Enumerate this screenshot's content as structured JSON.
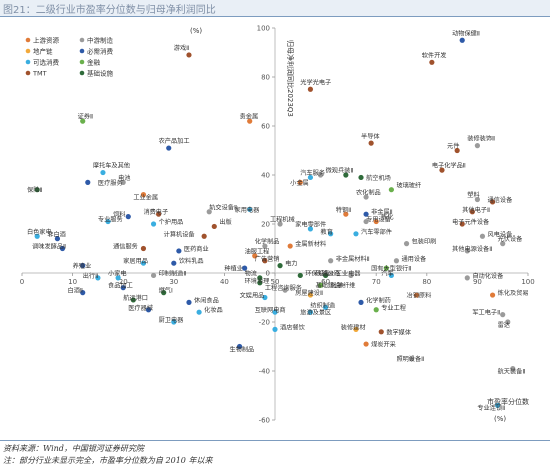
{
  "figure_title": "图21：二级行业市盈率分位数与归母净利润同比",
  "chart_data": {
    "type": "scatter",
    "x_unit_label": "(%)",
    "x_axis_label": "市盈率分位数",
    "y_unit_label": "(%)",
    "y_axis_label": "归母净利润同比2023Q3",
    "xlim": [
      0,
      100
    ],
    "ylim": [
      -60,
      100
    ],
    "x_ticks": [
      0,
      10,
      20,
      30,
      40,
      50,
      60,
      70,
      80,
      90,
      100
    ],
    "y_ticks": [
      -60,
      -40,
      -20,
      0,
      20,
      40,
      60,
      80,
      100
    ],
    "legend_placement": "top-left",
    "legend": [
      {
        "name": "上游资源",
        "color": "#e07b39"
      },
      {
        "name": "中游制造",
        "color": "#9b9b9b"
      },
      {
        "name": "地产链",
        "color": "#f2a93b"
      },
      {
        "name": "必需消费",
        "color": "#2e5aa8"
      },
      {
        "name": "可选消费",
        "color": "#3aaee0"
      },
      {
        "name": "金融",
        "color": "#6ab04c"
      },
      {
        "name": "TMT",
        "color": "#a0522d"
      },
      {
        "name": "基础设施",
        "color": "#2f6b3a"
      }
    ],
    "points": [
      {
        "label": "游戏Ⅱ",
        "x": 33,
        "y": 89,
        "color": "#a0522d"
      },
      {
        "label": "动物保健Ⅱ",
        "x": 87,
        "y": 95,
        "color": "#2e5aa8"
      },
      {
        "label": "软件开发",
        "x": 81,
        "y": 86,
        "color": "#a0522d"
      },
      {
        "label": "光学光电子",
        "x": 57,
        "y": 75,
        "color": "#a0522d"
      },
      {
        "label": "贵金属",
        "x": 45,
        "y": 62,
        "color": "#e07b39"
      },
      {
        "label": "证券Ⅱ",
        "x": 12,
        "y": 62,
        "color": "#6ab04c"
      },
      {
        "label": "农产品加工",
        "x": 29,
        "y": 51,
        "color": "#2e5aa8"
      },
      {
        "label": "半导体",
        "x": 69,
        "y": 53,
        "color": "#a0522d"
      },
      {
        "label": "装修装饰Ⅱ",
        "x": 90,
        "y": 52,
        "color": "#9b9b9b"
      },
      {
        "label": "元件",
        "x": 86,
        "y": 50,
        "color": "#a0522d"
      },
      {
        "label": "摩托车及其他",
        "x": 16,
        "y": 41,
        "color": "#3aaee0"
      },
      {
        "label": "医疗服务",
        "x": 13,
        "y": 37,
        "color": "#2e5aa8"
      },
      {
        "label": "电池",
        "x": 20,
        "y": 37,
        "color": "#9b9b9b"
      },
      {
        "label": "航空机场",
        "x": 67,
        "y": 39,
        "color": "#2f6b3a"
      },
      {
        "label": "电子化学品Ⅱ",
        "x": 83,
        "y": 42,
        "color": "#a0522d"
      },
      {
        "label": "汽车服务",
        "x": 57,
        "y": 39,
        "color": "#3aaee0"
      },
      {
        "label": "小金属",
        "x": 55,
        "y": 37,
        "color": "#e07b39"
      },
      {
        "label": "燃气Ⅱ",
        "x": 64,
        "y": 40,
        "color": "#2f6b3a"
      },
      {
        "label": "微观兵装Ⅱ",
        "x": 59,
        "y": 40,
        "color": "#9b9b9b"
      },
      {
        "label": "保险Ⅱ",
        "x": 3,
        "y": 34,
        "color": "#2f6b3a"
      },
      {
        "label": "工业金属",
        "x": 24,
        "y": 32,
        "color": "#e07b39"
      },
      {
        "label": "玻璃玻纤",
        "x": 73,
        "y": 34,
        "color": "#6ab04c"
      },
      {
        "label": "农化制品",
        "x": 68,
        "y": 31,
        "color": "#9b9b9b"
      },
      {
        "label": "塑料",
        "x": 90,
        "y": 30,
        "color": "#9b9b9b"
      },
      {
        "label": "通信设备",
        "x": 93,
        "y": 29,
        "color": "#a0522d"
      },
      {
        "label": "家用电器",
        "x": 45,
        "y": 26,
        "color": "#3aaee0"
      },
      {
        "label": "消费电子",
        "x": 27,
        "y": 24,
        "color": "#a0522d"
      },
      {
        "label": "轨交设备Ⅱ",
        "x": 37,
        "y": 25,
        "color": "#9b9b9b"
      },
      {
        "label": "特钢Ⅱ",
        "x": 64,
        "y": 24,
        "color": "#e07b39"
      },
      {
        "label": "非金属Ⅱ",
        "x": 68,
        "y": 24,
        "color": "#2e5aa8"
      },
      {
        "label": "其他电子Ⅱ",
        "x": 89,
        "y": 25,
        "color": "#a0522d"
      },
      {
        "label": "饲料",
        "x": 21,
        "y": 23,
        "color": "#2e5aa8"
      },
      {
        "label": "专业服务",
        "x": 17,
        "y": 21,
        "color": "#3aaee0"
      },
      {
        "label": "个护用品",
        "x": 26,
        "y": 20,
        "color": "#3aaee0"
      },
      {
        "label": "工程机械",
        "x": 51,
        "y": 20,
        "color": "#9b9b9b"
      },
      {
        "label": "炼化",
        "x": 70,
        "y": 21,
        "color": "#e07b39"
      },
      {
        "label": "专用设备",
        "x": 68,
        "y": 21,
        "color": "#9b9b9b"
      },
      {
        "label": "电子元件设备",
        "x": 87,
        "y": 20,
        "color": "#a0522d"
      },
      {
        "label": "出版",
        "x": 38,
        "y": 19,
        "color": "#a0522d"
      },
      {
        "label": "家电零部件",
        "x": 57,
        "y": 18,
        "color": "#3aaee0"
      },
      {
        "label": "风电设备",
        "x": 91,
        "y": 15,
        "color": "#9b9b9b"
      },
      {
        "label": "计算机设备",
        "x": 36,
        "y": 15,
        "color": "#a0522d"
      },
      {
        "label": "教育",
        "x": 61,
        "y": 16,
        "color": "#3aaee0"
      },
      {
        "label": "汽车零部件",
        "x": 66,
        "y": 16,
        "color": "#3aaee0"
      },
      {
        "label": "白色家电",
        "x": 3,
        "y": 15,
        "color": "#3aaee0"
      },
      {
        "label": "非白酒",
        "x": 7,
        "y": 14,
        "color": "#2e5aa8"
      },
      {
        "label": "化学制品",
        "x": 48,
        "y": 11,
        "color": "#9b9b9b"
      },
      {
        "label": "金属新材料",
        "x": 53,
        "y": 11,
        "color": "#e07b39"
      },
      {
        "label": "包装印刷",
        "x": 76,
        "y": 12,
        "color": "#9b9b9b"
      },
      {
        "label": "光伏设备",
        "x": 95,
        "y": 12,
        "color": "#9b9b9b"
      },
      {
        "label": "调味发酵品Ⅱ",
        "x": 8,
        "y": 10,
        "color": "#2e5aa8"
      },
      {
        "label": "通信服务",
        "x": 24,
        "y": 10,
        "color": "#a0522d"
      },
      {
        "label": "医药商业",
        "x": 31,
        "y": 9,
        "color": "#2e5aa8"
      },
      {
        "label": "其他电源设备Ⅱ",
        "x": 88,
        "y": 9,
        "color": "#9b9b9b"
      },
      {
        "label": "油服工程",
        "x": 46,
        "y": 7,
        "color": "#e07b39"
      },
      {
        "label": "广告营销",
        "x": 48,
        "y": 5,
        "color": "#a0522d"
      },
      {
        "label": "电力",
        "x": 51,
        "y": 3,
        "color": "#2f6b3a"
      },
      {
        "label": "非金属材料Ⅱ",
        "x": 61,
        "y": 5,
        "color": "#9b9b9b"
      },
      {
        "label": "通用设备",
        "x": 74,
        "y": 5,
        "color": "#9b9b9b"
      },
      {
        "label": "国有大型银行Ⅱ",
        "x": 72,
        "y": 2,
        "color": "#6ab04c"
      },
      {
        "label": "养殖业",
        "x": 12,
        "y": 3,
        "color": "#2e5aa8"
      },
      {
        "label": "家居用品",
        "x": 24,
        "y": 4,
        "color": "#3aaee0"
      },
      {
        "label": "饮料乳品",
        "x": 30,
        "y": 4,
        "color": "#2e5aa8"
      },
      {
        "label": "种植业",
        "x": 44,
        "y": 2,
        "color": "#2e5aa8"
      },
      {
        "label": "出行Ⅱ",
        "x": 15,
        "y": -2,
        "color": "#3aaee0"
      },
      {
        "label": "小家电",
        "x": 19,
        "y": -2,
        "color": "#3aaee0"
      },
      {
        "label": "食品加工",
        "x": 20,
        "y": -6,
        "color": "#2e5aa8"
      },
      {
        "label": "印制制造Ⅱ",
        "x": 26,
        "y": -1,
        "color": "#9b9b9b"
      },
      {
        "label": "物流",
        "x": 47,
        "y": -2,
        "color": "#2f6b3a"
      },
      {
        "label": "环境治理",
        "x": 47,
        "y": -4,
        "color": "#2f6b3a"
      },
      {
        "label": "环保设备Ⅱ",
        "x": 55,
        "y": -1,
        "color": "#2f6b3a"
      },
      {
        "label": "铁路公路",
        "x": 60,
        "y": -1,
        "color": "#2f6b3a"
      },
      {
        "label": "工业电器",
        "x": 65,
        "y": -1,
        "color": "#9b9b9b"
      },
      {
        "label": "汽车",
        "x": 73,
        "y": -1,
        "color": "#3aaee0"
      },
      {
        "label": "自动化设备",
        "x": 88,
        "y": -2,
        "color": "#9b9b9b"
      },
      {
        "label": "白酒Ⅱ",
        "x": 12,
        "y": -8,
        "color": "#2e5aa8"
      },
      {
        "label": "航运港口",
        "x": 22,
        "y": -11,
        "color": "#2f6b3a"
      },
      {
        "label": "燃气Ⅰ",
        "x": 28,
        "y": -8,
        "color": "#2f6b3a"
      },
      {
        "label": "工程咨询服务",
        "x": 52,
        "y": -7,
        "color": "#9b9b9b"
      },
      {
        "label": "基础建设",
        "x": 59,
        "y": -5,
        "color": "#6ab04c"
      },
      {
        "label": "化学纤维",
        "x": 63,
        "y": -5,
        "color": "#9b9b9b"
      },
      {
        "label": "冶钢原料",
        "x": 78,
        "y": -9,
        "color": "#e07b39"
      },
      {
        "label": "文娱用品",
        "x": 48,
        "y": -10,
        "color": "#3aaee0"
      },
      {
        "label": "房屋建设Ⅱ",
        "x": 57,
        "y": -9,
        "color": "#f2a93b"
      },
      {
        "label": "休闲食品",
        "x": 33,
        "y": -12,
        "color": "#2e5aa8"
      },
      {
        "label": "医疗器械",
        "x": 25,
        "y": -15,
        "color": "#2e5aa8"
      },
      {
        "label": "化妆品",
        "x": 35,
        "y": -16,
        "color": "#3aaee0"
      },
      {
        "label": "厨卫电器",
        "x": 30,
        "y": -20,
        "color": "#3aaee0"
      },
      {
        "label": "互联网电商",
        "x": 50,
        "y": -16,
        "color": "#3aaee0"
      },
      {
        "label": "化学制药",
        "x": 67,
        "y": -12,
        "color": "#2e5aa8"
      },
      {
        "label": "纺织制造",
        "x": 60,
        "y": -14,
        "color": "#3aaee0"
      },
      {
        "label": "旅游及景区",
        "x": 57,
        "y": -16,
        "color": "#3aaee0"
      },
      {
        "label": "专业工程",
        "x": 70,
        "y": -15,
        "color": "#6ab04c"
      },
      {
        "label": "炼化及贸易",
        "x": 93,
        "y": -9,
        "color": "#e07b39"
      },
      {
        "label": "军工电子Ⅱ",
        "x": 95,
        "y": -17,
        "color": "#9b9b9b"
      },
      {
        "label": "雷达",
        "x": 96,
        "y": -20,
        "color": "#9b9b9b"
      },
      {
        "label": "酒店餐饮",
        "x": 50,
        "y": -23,
        "color": "#3aaee0"
      },
      {
        "label": "装修建材",
        "x": 66,
        "y": -23,
        "color": "#f2a93b"
      },
      {
        "label": "数字媒体",
        "x": 71,
        "y": -24,
        "color": "#a0522d"
      },
      {
        "label": "煤炭开采",
        "x": 68,
        "y": -29,
        "color": "#e07b39"
      },
      {
        "label": "生物制品",
        "x": 43,
        "y": -30,
        "color": "#2e5aa8"
      },
      {
        "label": "照明设备Ⅱ",
        "x": 77,
        "y": -35,
        "color": "#9b9b9b"
      },
      {
        "label": "航天装备Ⅱ",
        "x": 97,
        "y": -39,
        "color": "#9b9b9b"
      },
      {
        "label": "专业连锁Ⅱ",
        "x": 94,
        "y": -54,
        "color": "#3aaee0"
      }
    ],
    "point_labels": [
      {
        "text": "游戏Ⅱ",
        "x": 30,
        "y": 91
      },
      {
        "text": "动物保健Ⅱ",
        "x": 85,
        "y": 97
      },
      {
        "text": "软件开发",
        "x": 79,
        "y": 88
      },
      {
        "text": "光学光电子",
        "x": 55,
        "y": 77
      },
      {
        "text": "贵金属",
        "x": 43,
        "y": 63
      },
      {
        "text": "证券Ⅱ",
        "x": 11,
        "y": 63
      },
      {
        "text": "农产品加工",
        "x": 27,
        "y": 53
      },
      {
        "text": "半导体",
        "x": 67,
        "y": 55
      },
      {
        "text": "装修装饰Ⅱ",
        "x": 88,
        "y": 54
      },
      {
        "text": "元件",
        "x": 84,
        "y": 51
      },
      {
        "text": "摩托车及其他",
        "x": 14,
        "y": 43
      },
      {
        "text": "医疗服务",
        "x": 15,
        "y": 36
      },
      {
        "text": "电池",
        "x": 19,
        "y": 38
      },
      {
        "text": "航空机场",
        "x": 68,
        "y": 38
      },
      {
        "text": "电子化学品Ⅱ",
        "x": 81,
        "y": 43
      },
      {
        "text": "汽车服务",
        "x": 55,
        "y": 40
      },
      {
        "text": "小金属",
        "x": 53,
        "y": 36
      },
      {
        "text": "微观兵装Ⅱ",
        "x": 60,
        "y": 41
      },
      {
        "text": "保险Ⅱ",
        "x": 1,
        "y": 33
      },
      {
        "text": "工业金属",
        "x": 22,
        "y": 30
      },
      {
        "text": "玻璃玻纤",
        "x": 74,
        "y": 35
      },
      {
        "text": "农化制品",
        "x": 66,
        "y": 32
      },
      {
        "text": "塑料",
        "x": 88,
        "y": 31
      },
      {
        "text": "通信设备",
        "x": 92,
        "y": 29
      },
      {
        "text": "家用电器",
        "x": 42,
        "y": 25
      },
      {
        "text": "消费电子",
        "x": 24,
        "y": 24
      },
      {
        "text": "轨交设备Ⅱ",
        "x": 37,
        "y": 26
      },
      {
        "text": "特钢Ⅱ",
        "x": 62,
        "y": 25
      },
      {
        "text": "非金属Ⅱ",
        "x": 69,
        "y": 24
      },
      {
        "text": "其他电子Ⅱ",
        "x": 87,
        "y": 25
      },
      {
        "text": "饲料",
        "x": 18,
        "y": 23
      },
      {
        "text": "专业服务",
        "x": 15,
        "y": 21
      },
      {
        "text": "个护用品",
        "x": 27,
        "y": 20
      },
      {
        "text": "工程机械",
        "x": 49,
        "y": 21
      },
      {
        "text": "炼化",
        "x": 71,
        "y": 22
      },
      {
        "text": "专用设备",
        "x": 68,
        "y": 21
      },
      {
        "text": "电子元件设备",
        "x": 85,
        "y": 20
      },
      {
        "text": "出版",
        "x": 39,
        "y": 20
      },
      {
        "text": "家电零部件",
        "x": 54,
        "y": 19
      },
      {
        "text": "风电设备",
        "x": 92,
        "y": 15
      },
      {
        "text": "计算机设备",
        "x": 28,
        "y": 15
      },
      {
        "text": "教育",
        "x": 59,
        "y": 16
      },
      {
        "text": "汽车零部件",
        "x": 67,
        "y": 16
      },
      {
        "text": "白色家电",
        "x": 1,
        "y": 16
      },
      {
        "text": "非白酒",
        "x": 5,
        "y": 15
      },
      {
        "text": "化学制品",
        "x": 46,
        "y": 12
      },
      {
        "text": "金属新材料",
        "x": 54,
        "y": 11
      },
      {
        "text": "包装印刷",
        "x": 77,
        "y": 12
      },
      {
        "text": "光伏设备",
        "x": 94,
        "y": 13
      },
      {
        "text": "调味发酵品Ⅱ",
        "x": 2,
        "y": 10
      },
      {
        "text": "通信服务",
        "x": 18,
        "y": 10
      },
      {
        "text": "医药商业",
        "x": 32,
        "y": 9
      },
      {
        "text": "其他电源设备Ⅱ",
        "x": 85,
        "y": 9
      },
      {
        "text": "油服工程",
        "x": 44,
        "y": 8
      },
      {
        "text": "广告营销",
        "x": 46,
        "y": 5
      },
      {
        "text": "电力",
        "x": 52,
        "y": 3
      },
      {
        "text": "非金属材料Ⅱ",
        "x": 62,
        "y": 5
      },
      {
        "text": "通用设备",
        "x": 75,
        "y": 5
      },
      {
        "text": "国有大型银行Ⅱ",
        "x": 69,
        "y": 1
      },
      {
        "text": "养殖业",
        "x": 10,
        "y": 2
      },
      {
        "text": "家居用品",
        "x": 20,
        "y": 4
      },
      {
        "text": "饮料乳品",
        "x": 31,
        "y": 4
      },
      {
        "text": "种植业",
        "x": 40,
        "y": 1
      },
      {
        "text": "出行Ⅱ",
        "x": 12,
        "y": -2
      },
      {
        "text": "小家电",
        "x": 17,
        "y": -1
      },
      {
        "text": "食品加工",
        "x": 17,
        "y": -6
      },
      {
        "text": "印制制造Ⅱ",
        "x": 27,
        "y": -1
      },
      {
        "text": "物流",
        "x": 44,
        "y": -1
      },
      {
        "text": "环境治理",
        "x": 44,
        "y": -4
      },
      {
        "text": "环保设备Ⅱ",
        "x": 56,
        "y": -1
      },
      {
        "text": "铁路公路",
        "x": 58,
        "y": -1
      },
      {
        "text": "工业电器",
        "x": 62,
        "y": -1
      },
      {
        "text": "汽车",
        "x": 71,
        "y": -1
      },
      {
        "text": "自动化设备",
        "x": 89,
        "y": -2
      },
      {
        "text": "白酒Ⅱ",
        "x": 9,
        "y": -8
      },
      {
        "text": "航运港口",
        "x": 20,
        "y": -11
      },
      {
        "text": "燃气Ⅰ",
        "x": 27,
        "y": -8
      },
      {
        "text": "工程咨询服务",
        "x": 48,
        "y": -7
      },
      {
        "text": "基础建设",
        "x": 58,
        "y": -6
      },
      {
        "text": "化学纤维",
        "x": 61,
        "y": -6
      },
      {
        "text": "冶钢原料",
        "x": 76,
        "y": -10
      },
      {
        "text": "文娱用品",
        "x": 43,
        "y": -10
      },
      {
        "text": "房屋建设Ⅱ",
        "x": 54,
        "y": -9
      },
      {
        "text": "休闲食品",
        "x": 34,
        "y": -12
      },
      {
        "text": "医疗器械",
        "x": 21,
        "y": -15
      },
      {
        "text": "化妆品",
        "x": 36,
        "y": -16
      },
      {
        "text": "厨卫电器",
        "x": 27,
        "y": -20
      },
      {
        "text": "互联网电商",
        "x": 46,
        "y": -16
      },
      {
        "text": "化学制药",
        "x": 68,
        "y": -12
      },
      {
        "text": "纺织制造",
        "x": 57,
        "y": -14
      },
      {
        "text": "旅游及景区",
        "x": 55,
        "y": -17
      },
      {
        "text": "专业工程",
        "x": 71,
        "y": -15
      },
      {
        "text": "炼化及贸易",
        "x": 94,
        "y": -9
      },
      {
        "text": "军工电子Ⅱ",
        "x": 89,
        "y": -17
      },
      {
        "text": "雷达",
        "x": 94,
        "y": -22
      },
      {
        "text": "酒店餐饮",
        "x": 51,
        "y": -23
      },
      {
        "text": "装修建材",
        "x": 63,
        "y": -23
      },
      {
        "text": "数字媒体",
        "x": 72,
        "y": -25
      },
      {
        "text": "煤炭开采",
        "x": 69,
        "y": -30
      },
      {
        "text": "生物制品",
        "x": 41,
        "y": -32
      },
      {
        "text": "照明设备Ⅱ",
        "x": 74,
        "y": -36
      },
      {
        "text": "航天装备Ⅱ",
        "x": 94,
        "y": -41
      },
      {
        "text": "专业连锁Ⅱ",
        "x": 90,
        "y": -56
      }
    ]
  },
  "footer": {
    "source": "资料来源：Wind，中国银河证券研究院",
    "note": "注：部分行业未显示完全，市盈率分位数为自 2010 年以来"
  }
}
